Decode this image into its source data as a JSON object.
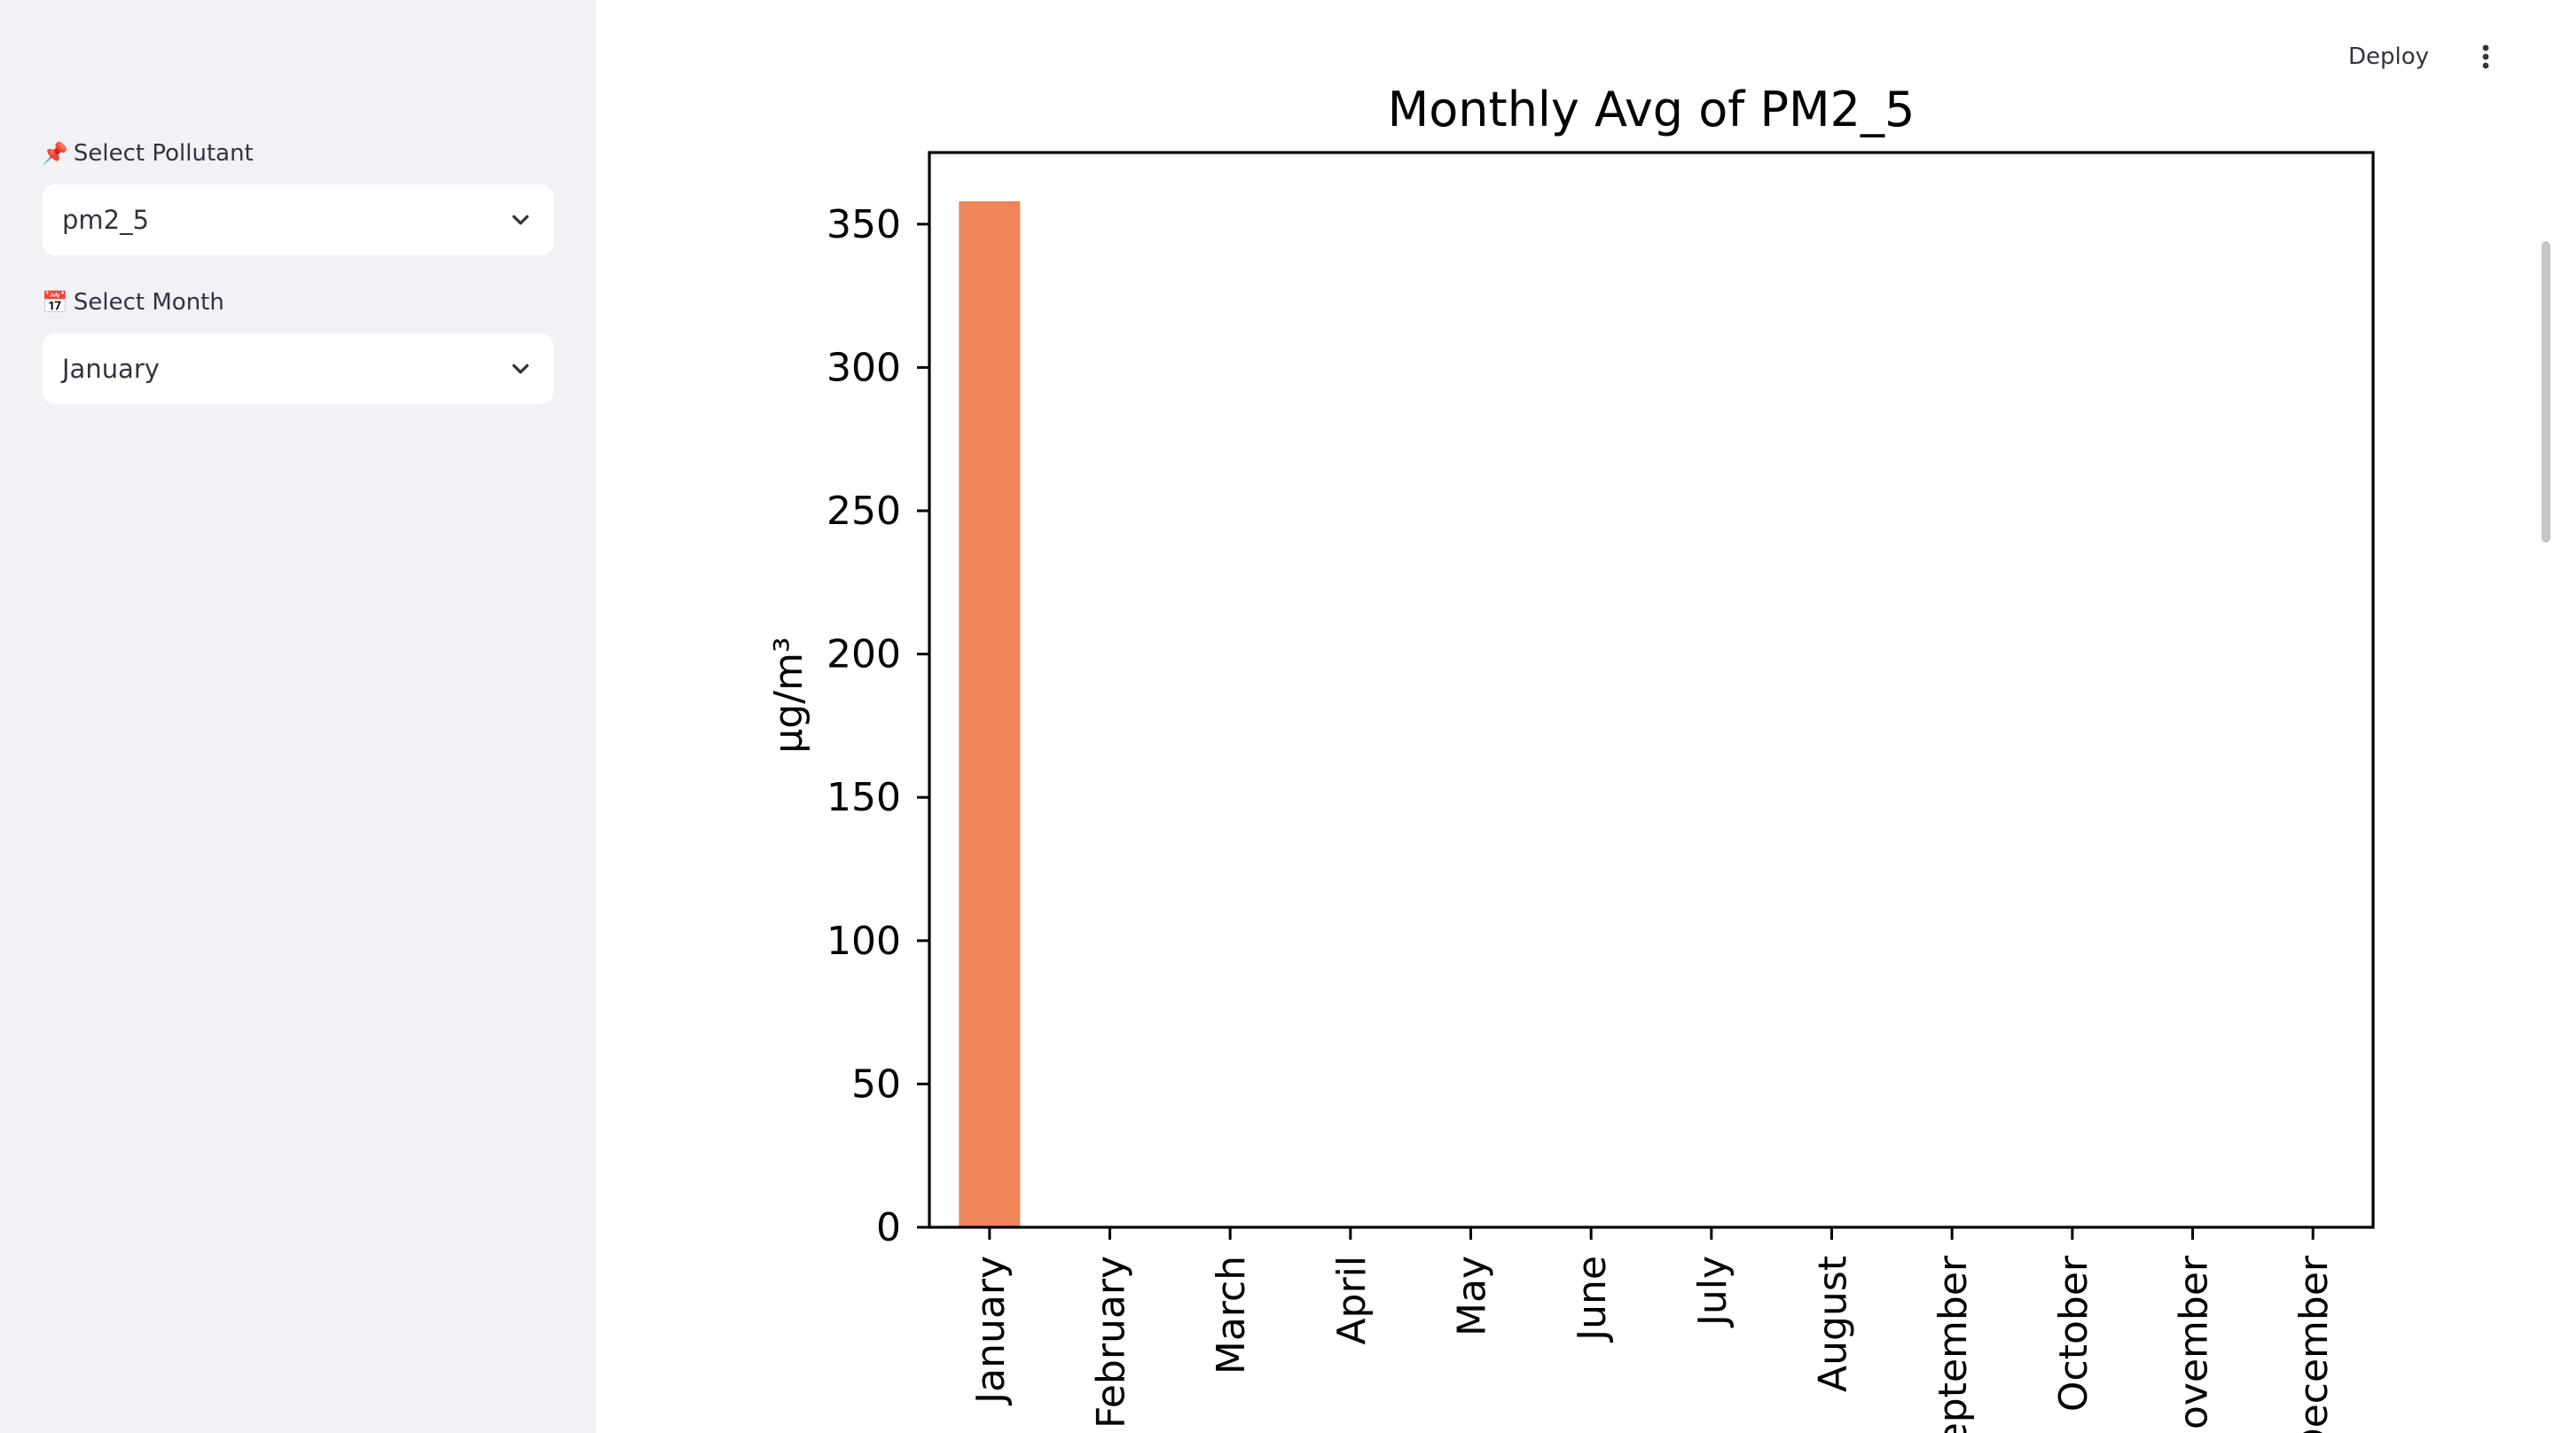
{
  "sidebar": {
    "pollutant": {
      "icon": "pushpin-icon",
      "emoji": "📌",
      "label": "Select Pollutant",
      "value": "pm2_5"
    },
    "month": {
      "icon": "calendar-icon",
      "emoji": "📅",
      "label": "Select Month",
      "value": "January"
    }
  },
  "header": {
    "deploy_label": "Deploy",
    "menu_icon": "vertical-dots-icon"
  },
  "colors": {
    "bar": "#ee8659",
    "sidebar_bg": "#f0f2f6"
  },
  "chart_data": {
    "type": "bar",
    "title": "Monthly Avg of PM2_5",
    "xlabel": "",
    "ylabel": "µg/m³",
    "categories": [
      "January",
      "February",
      "March",
      "April",
      "May",
      "June",
      "July",
      "August",
      "September",
      "October",
      "November",
      "December"
    ],
    "values": [
      358,
      0,
      0,
      0,
      0,
      0,
      0,
      0,
      0,
      0,
      0,
      0
    ],
    "ylim": [
      0,
      375
    ],
    "yticks": [
      0,
      50,
      100,
      150,
      200,
      250,
      300,
      350
    ],
    "grid": false,
    "legend": "none"
  }
}
